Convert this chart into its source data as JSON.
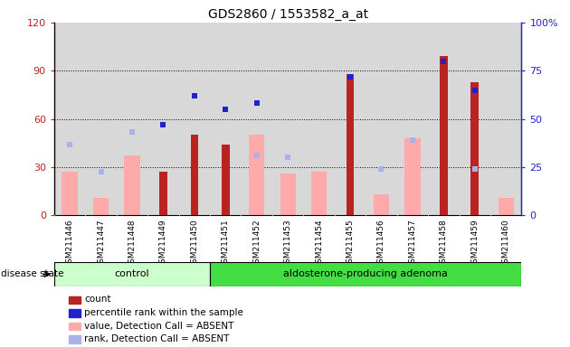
{
  "title": "GDS2860 / 1553582_a_at",
  "samples": [
    "GSM211446",
    "GSM211447",
    "GSM211448",
    "GSM211449",
    "GSM211450",
    "GSM211451",
    "GSM211452",
    "GSM211453",
    "GSM211454",
    "GSM211455",
    "GSM211456",
    "GSM211457",
    "GSM211458",
    "GSM211459",
    "GSM211460"
  ],
  "count": [
    0,
    0,
    0,
    27,
    50,
    44,
    0,
    0,
    0,
    88,
    0,
    0,
    99,
    83,
    0
  ],
  "percentile_rank": [
    null,
    null,
    null,
    47,
    62,
    55,
    58,
    null,
    null,
    72,
    null,
    null,
    80,
    65,
    null
  ],
  "value_absent": [
    27,
    11,
    37,
    null,
    null,
    null,
    50,
    26,
    27,
    null,
    13,
    48,
    null,
    null,
    11
  ],
  "rank_absent": [
    44,
    27,
    52,
    null,
    null,
    null,
    37,
    36,
    null,
    null,
    29,
    47,
    null,
    29,
    null
  ],
  "group": [
    "control",
    "control",
    "control",
    "control",
    "control",
    "aldosterone",
    "aldosterone",
    "aldosterone",
    "aldosterone",
    "aldosterone",
    "aldosterone",
    "aldosterone",
    "aldosterone",
    "aldosterone",
    "aldosterone"
  ],
  "ylim_left": [
    0,
    120
  ],
  "ylim_right": [
    0,
    100
  ],
  "yticks_left": [
    0,
    30,
    60,
    90,
    120
  ],
  "yticks_right": [
    0,
    25,
    50,
    75,
    100
  ],
  "ytick_labels_left": [
    "0",
    "30",
    "60",
    "90",
    "120"
  ],
  "ytick_labels_right": [
    "0",
    "25",
    "50",
    "75",
    "100%"
  ],
  "color_count": "#bb2222",
  "color_percentile": "#2222cc",
  "color_value_absent": "#ffaaaa",
  "color_rank_absent": "#aab0e8",
  "color_control_bg": "#ccffcc",
  "color_adenoma_bg": "#44dd44",
  "n_control": 5,
  "control_label": "control",
  "adenoma_label": "aldosterone-producing adenoma"
}
